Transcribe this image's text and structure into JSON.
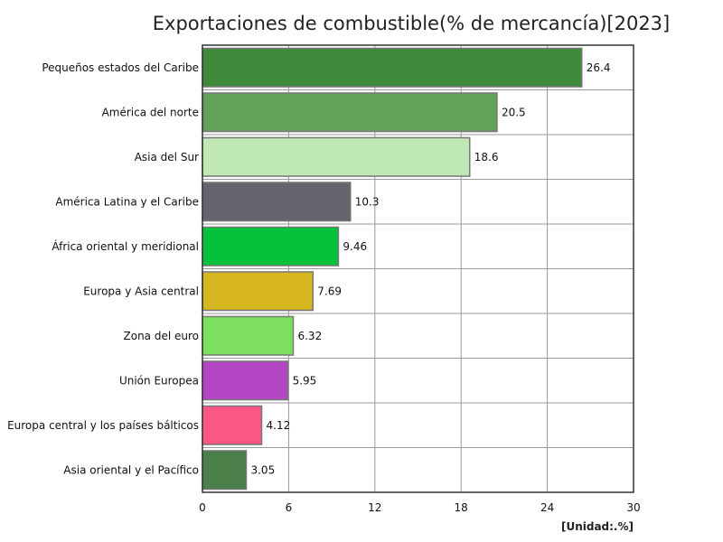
{
  "chart_data": {
    "type": "bar",
    "orientation": "horizontal",
    "title": "Exportaciones de combustible(% de mercancía)[2023]",
    "unit": "[Unidad:.%]",
    "categories": [
      "Pequeños estados del Caribe",
      "América del norte",
      "Asia del Sur",
      "América Latina y el Caribe",
      "África oriental y meridional",
      "Europa y Asia central",
      "Zona del euro",
      "Unión Europea",
      "Europa central y los países bálticos",
      "Asia oriental y el Pacífico"
    ],
    "values": [
      26.4,
      20.5,
      18.6,
      10.3,
      9.46,
      7.69,
      6.32,
      5.95,
      4.12,
      3.05
    ],
    "value_labels": [
      "26.4",
      "20.5",
      "18.6",
      "10.3",
      "9.46",
      "7.69",
      "6.32",
      "5.95",
      "4.12",
      "3.05"
    ],
    "colors": [
      "#3e8a3a",
      "#62a25a",
      "#bfe8b4",
      "#67646d",
      "#04c23a",
      "#d6b621",
      "#7ce05e",
      "#b445c3",
      "#fa5686",
      "#4a7f4a"
    ],
    "xlim": [
      0,
      30
    ],
    "xticks": [
      "0",
      "6",
      "12",
      "18",
      "24",
      "30"
    ],
    "grid": true
  }
}
